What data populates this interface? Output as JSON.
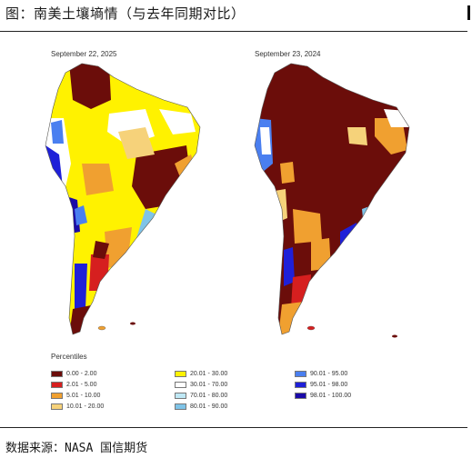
{
  "title": "图：南美土壤墒情（与去年同期对比）",
  "source": "数据来源：NASA  国信期货",
  "maps": [
    {
      "date": "September 22, 2025"
    },
    {
      "date": "September 23, 2024"
    }
  ],
  "legend": {
    "title": "Percentiles",
    "items": [
      {
        "label": "0.00 - 2.00",
        "color": "#6b0d0a"
      },
      {
        "label": "2.01 - 5.00",
        "color": "#d61f1f"
      },
      {
        "label": "5.01 - 10.00",
        "color": "#f0a030"
      },
      {
        "label": "10.01 - 20.00",
        "color": "#f6d27a"
      },
      {
        "label": "20.01 - 30.00",
        "color": "#fff200"
      },
      {
        "label": "30.01 - 70.00",
        "color": "#ffffff"
      },
      {
        "label": "70.01 - 80.00",
        "color": "#bfe8f5"
      },
      {
        "label": "80.01 - 90.00",
        "color": "#7fc4e8"
      },
      {
        "label": "90.01 - 95.00",
        "color": "#4a7ff0"
      },
      {
        "label": "95.01 - 98.00",
        "color": "#1f20d8"
      },
      {
        "label": "98.01 - 100.00",
        "color": "#1a0aa8"
      }
    ]
  }
}
